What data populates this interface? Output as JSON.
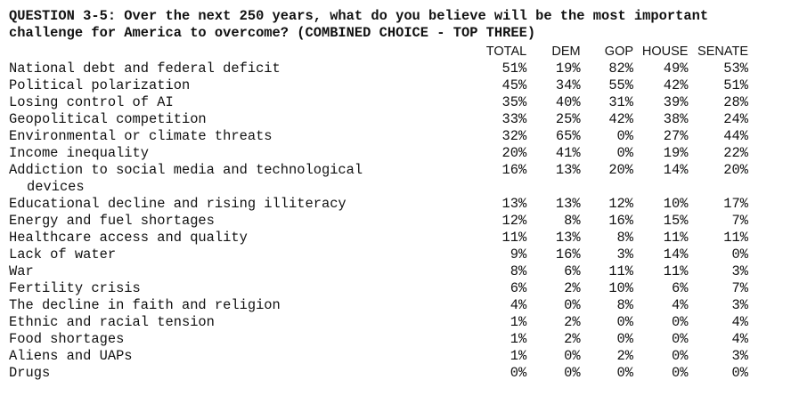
{
  "question": {
    "line1": "QUESTION 3-5: Over the next 250 years, what do you believe will be the most important",
    "line2": "challenge for America to overcome? (COMBINED CHOICE - TOP THREE)"
  },
  "columns": [
    "TOTAL",
    "DEM",
    "GOP",
    "HOUSE",
    "SENATE"
  ],
  "rows": [
    {
      "label": "National debt and federal deficit",
      "values": [
        "51%",
        "19%",
        "82%",
        "49%",
        "53%"
      ]
    },
    {
      "label": "Political polarization",
      "values": [
        "45%",
        "34%",
        "55%",
        "42%",
        "51%"
      ]
    },
    {
      "label": "Losing control of AI",
      "values": [
        "35%",
        "40%",
        "31%",
        "39%",
        "28%"
      ]
    },
    {
      "label": "Geopolitical competition",
      "values": [
        "33%",
        "25%",
        "42%",
        "38%",
        "24%"
      ]
    },
    {
      "label": "Environmental or climate threats",
      "values": [
        "32%",
        "65%",
        "0%",
        "27%",
        "44%"
      ]
    },
    {
      "label": "Income inequality",
      "values": [
        "20%",
        "41%",
        "0%",
        "19%",
        "22%"
      ]
    },
    {
      "label": "Addiction to social media and technological",
      "label_cont": "devices",
      "values": [
        "16%",
        "13%",
        "20%",
        "14%",
        "20%"
      ]
    },
    {
      "label": "Educational decline and rising illiteracy",
      "values": [
        "13%",
        "13%",
        "12%",
        "10%",
        "17%"
      ]
    },
    {
      "label": "Energy and fuel shortages",
      "values": [
        "12%",
        "8%",
        "16%",
        "15%",
        "7%"
      ]
    },
    {
      "label": "Healthcare access and quality",
      "values": [
        "11%",
        "13%",
        "8%",
        "11%",
        "11%"
      ]
    },
    {
      "label": "Lack of water",
      "values": [
        "9%",
        "16%",
        "3%",
        "14%",
        "0%"
      ]
    },
    {
      "label": "War",
      "values": [
        "8%",
        "6%",
        "11%",
        "11%",
        "3%"
      ]
    },
    {
      "label": "Fertility crisis",
      "values": [
        "6%",
        "2%",
        "10%",
        "6%",
        "7%"
      ]
    },
    {
      "label": "The decline in faith and religion",
      "values": [
        "4%",
        "0%",
        "8%",
        "4%",
        "3%"
      ]
    },
    {
      "label": "Ethnic and racial tension",
      "values": [
        "1%",
        "2%",
        "0%",
        "0%",
        "4%"
      ]
    },
    {
      "label": "Food shortages",
      "values": [
        "1%",
        "2%",
        "0%",
        "0%",
        "4%"
      ]
    },
    {
      "label": "Aliens and UAPs",
      "values": [
        "1%",
        "0%",
        "2%",
        "0%",
        "3%"
      ]
    },
    {
      "label": "Drugs",
      "values": [
        "0%",
        "0%",
        "0%",
        "0%",
        "0%"
      ]
    }
  ]
}
